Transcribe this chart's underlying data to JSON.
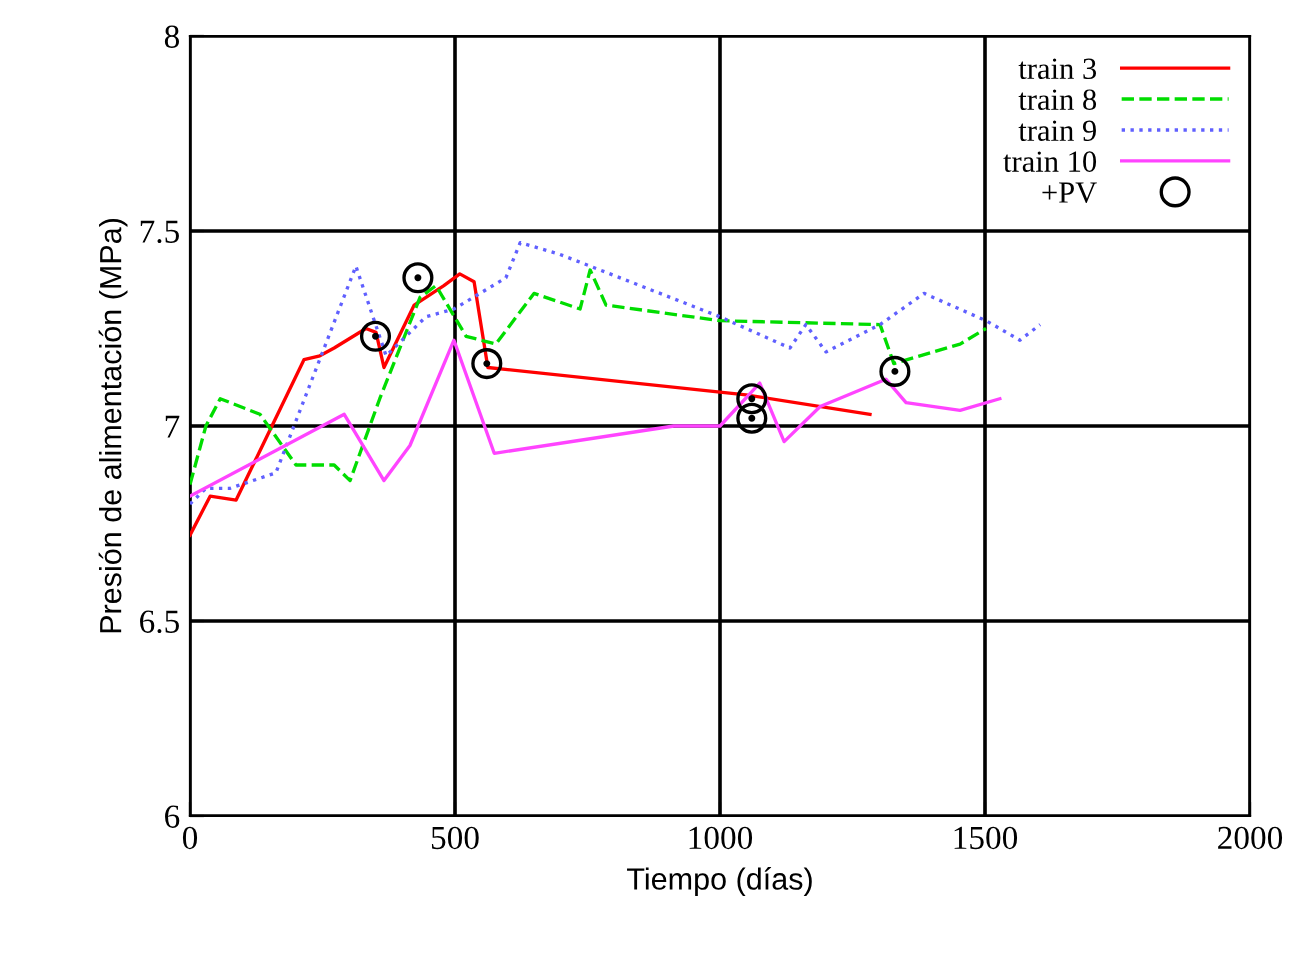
{
  "chart_data": {
    "type": "line",
    "xlabel": "Tiempo (días)",
    "ylabel": "Presión de alimentación (MPa)",
    "xlim": [
      0,
      2000
    ],
    "ylim": [
      6,
      8
    ],
    "xticks": [
      0,
      500,
      1000,
      1500,
      2000
    ],
    "yticks": [
      6,
      6.5,
      7,
      7.5,
      8
    ],
    "grid": true,
    "legend": "top right",
    "series": [
      {
        "name": "train 3",
        "color": "#ff0000",
        "line_style": "solid",
        "x": [
          0,
          38,
          87,
          215,
          245,
          272,
          332,
          351,
          366,
          423,
          479,
          509,
          536,
          562,
          1049,
          1283
        ],
        "values": [
          6.72,
          6.82,
          6.81,
          7.17,
          7.18,
          7.2,
          7.25,
          7.24,
          7.15,
          7.31,
          7.36,
          7.39,
          7.37,
          7.15,
          7.08,
          7.03
        ]
      },
      {
        "name": "train 8",
        "color": "#00dd00",
        "line_style": "dashed",
        "x": [
          0,
          30,
          57,
          132,
          200,
          272,
          302,
          358,
          434,
          464,
          521,
          577,
          649,
          736,
          755,
          785,
          1000,
          1302,
          1328,
          1453,
          1502
        ],
        "values": [
          6.85,
          7.0,
          7.07,
          7.03,
          6.9,
          6.9,
          6.86,
          7.07,
          7.33,
          7.36,
          7.23,
          7.21,
          7.34,
          7.3,
          7.4,
          7.31,
          7.27,
          7.26,
          7.16,
          7.21,
          7.25
        ]
      },
      {
        "name": "train 9",
        "color": "#6060ff",
        "line_style": "dotted",
        "x": [
          0,
          30,
          75,
          162,
          313,
          370,
          445,
          498,
          596,
          623,
          698,
          736,
          1000,
          1132,
          1162,
          1200,
          1302,
          1385,
          1502,
          1566,
          1604
        ],
        "values": [
          6.8,
          6.84,
          6.84,
          6.88,
          7.41,
          7.18,
          7.28,
          7.3,
          7.38,
          7.47,
          7.44,
          7.42,
          7.28,
          7.2,
          7.26,
          7.19,
          7.26,
          7.34,
          7.27,
          7.22,
          7.26
        ]
      },
      {
        "name": "train 10",
        "color": "#ff44ff",
        "line_style": "solid",
        "x": [
          0,
          291,
          366,
          415,
          498,
          574,
          913,
          1000,
          1075,
          1121,
          1189,
          1313,
          1351,
          1453,
          1528
        ],
        "values": [
          6.82,
          7.03,
          6.86,
          6.95,
          7.22,
          6.93,
          7.0,
          7.0,
          7.11,
          6.96,
          7.05,
          7.12,
          7.06,
          7.04,
          7.07
        ]
      },
      {
        "name": "+PV",
        "type": "scatter",
        "color": "#000000",
        "marker": "circle",
        "x": [
          350,
          430,
          560,
          1060,
          1060,
          1330
        ],
        "values": [
          7.23,
          7.38,
          7.16,
          7.07,
          7.02,
          7.14
        ]
      }
    ]
  }
}
